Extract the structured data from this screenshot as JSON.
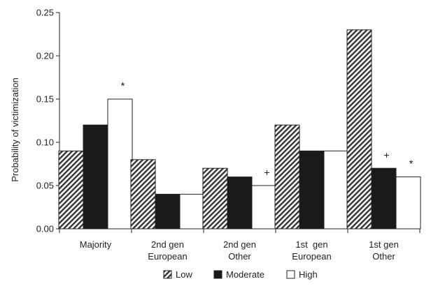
{
  "chart_data": {
    "type": "bar",
    "ylabel": "Probability of victimization",
    "ylim": [
      0,
      0.25
    ],
    "yticks": [
      "0.00",
      "0.05",
      "0.10",
      "0.15",
      "0.20",
      "0.25"
    ],
    "categories": [
      [
        "Majority"
      ],
      [
        "2nd gen",
        "European"
      ],
      [
        "2nd gen",
        "Other"
      ],
      [
        "1st  gen",
        "European"
      ],
      [
        "1st gen",
        "Other"
      ]
    ],
    "series": [
      {
        "name": "Low",
        "fill": "hatch",
        "values": [
          0.09,
          0.08,
          0.07,
          0.12,
          0.23
        ]
      },
      {
        "name": "Moderate",
        "fill": "#1a1a1a",
        "values": [
          0.12,
          0.04,
          0.06,
          0.09,
          0.07
        ]
      },
      {
        "name": "High",
        "fill": "#ffffff",
        "values": [
          0.15,
          0.04,
          0.05,
          0.09,
          0.06
        ]
      }
    ],
    "annotations": [
      {
        "category": 0,
        "series": 2,
        "text": "*"
      },
      {
        "category": 2,
        "series": 2,
        "text": "+"
      },
      {
        "category": 4,
        "series": 1,
        "text": "+"
      },
      {
        "category": 4,
        "series": 2,
        "text": "*"
      }
    ],
    "legend": {
      "placement": "bottom"
    },
    "grid": false
  }
}
